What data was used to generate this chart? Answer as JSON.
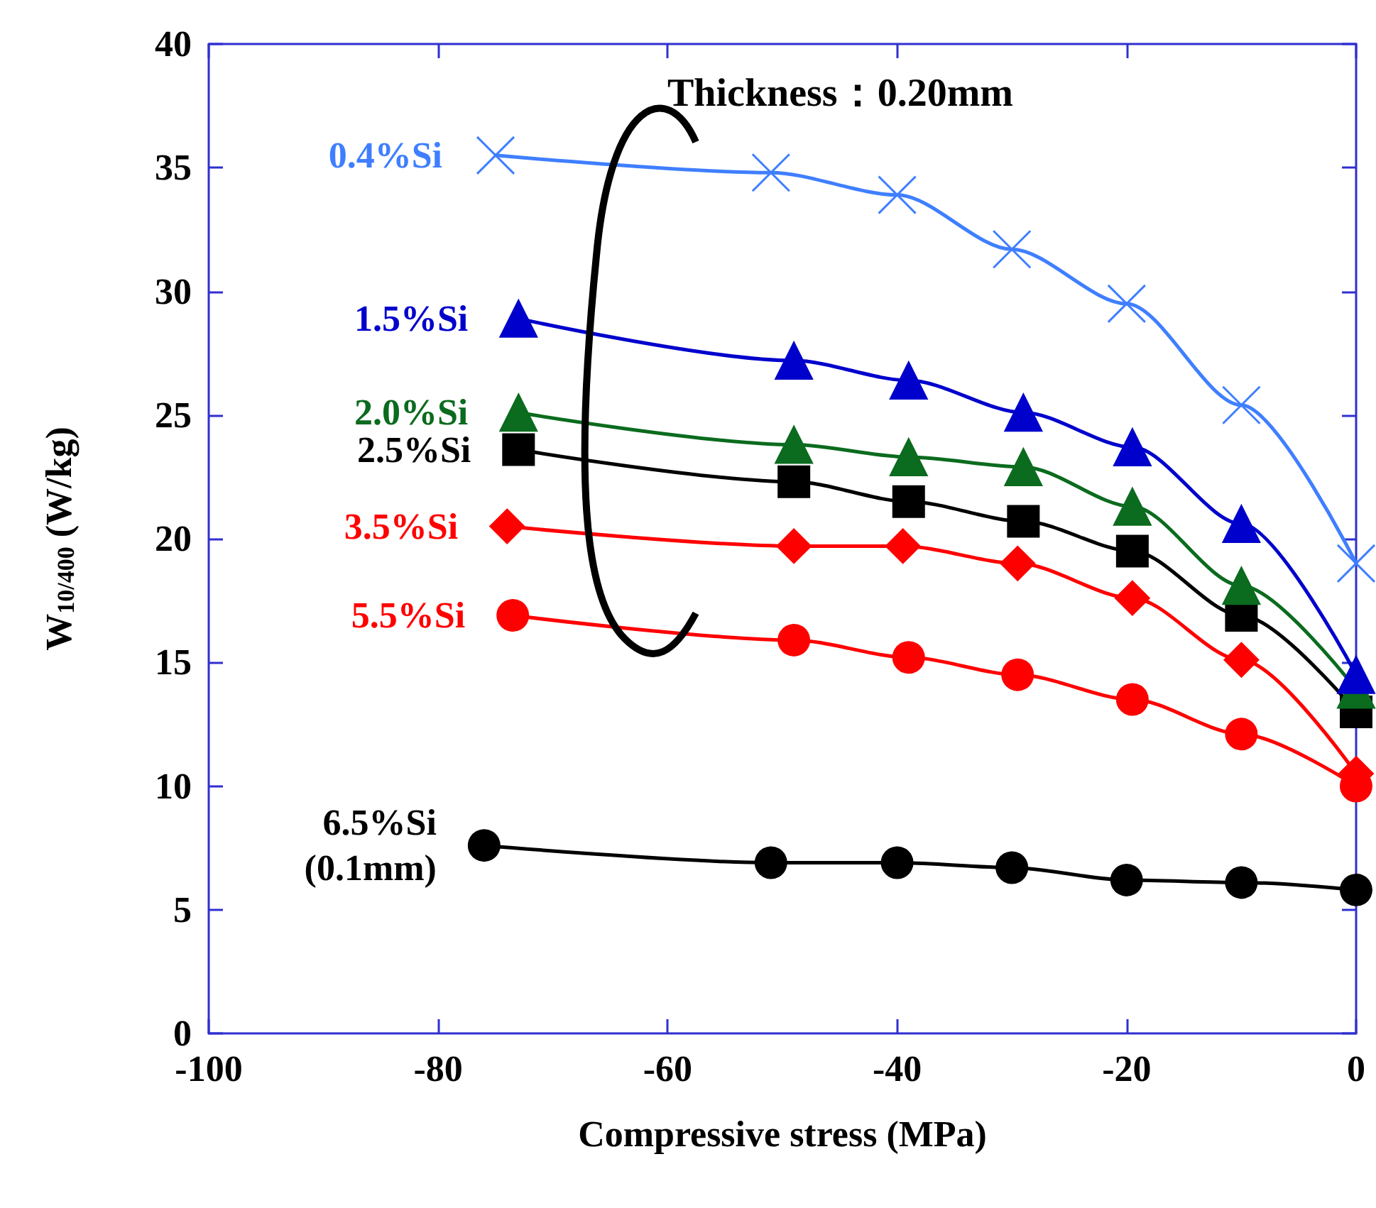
{
  "chart_data": {
    "type": "line",
    "xlabel": "Compressive stress (MPa)",
    "ylabel": "W$_{10/400}$ (W/kg)",
    "xlim": [
      -100,
      0
    ],
    "xticks": [
      -100,
      -80,
      -60,
      -40,
      -20,
      0
    ],
    "ylim": [
      0,
      40
    ],
    "yticks": [
      0,
      5,
      10,
      15,
      20,
      25,
      30,
      35,
      40
    ],
    "grid": false,
    "legend": false,
    "line_style": "solid",
    "annotations": [
      "Thickness：0.20mm"
    ],
    "series": [
      {
        "name": "0.4%Si",
        "color": "#3f7fff",
        "marker": "cross",
        "x": [
          -75,
          -51,
          -40,
          -30,
          -20,
          -10,
          0
        ],
        "values": [
          35.5,
          34.8,
          33.9,
          31.7,
          29.5,
          25.4,
          19.0
        ]
      },
      {
        "name": "1.5%Si",
        "color": "#0000cc",
        "marker": "triangle",
        "x": [
          -73,
          -49,
          -39,
          -29,
          -19.5,
          -10,
          0
        ],
        "values": [
          28.9,
          27.2,
          26.4,
          25.1,
          23.7,
          20.6,
          14.5
        ]
      },
      {
        "name": "2.0%Si",
        "color": "#0b6b1e",
        "marker": "triangle",
        "x": [
          -73,
          -49,
          -39,
          -29,
          -19.5,
          -10,
          0
        ],
        "values": [
          25.1,
          23.8,
          23.3,
          22.9,
          21.3,
          18.1,
          13.9
        ]
      },
      {
        "name": "2.5%Si",
        "color": "#000000",
        "marker": "square",
        "x": [
          -73,
          -49,
          -39,
          -29,
          -19.5,
          -10,
          0
        ],
        "values": [
          23.6,
          22.3,
          21.5,
          20.7,
          19.5,
          16.9,
          13.0
        ]
      },
      {
        "name": "3.5%Si",
        "color": "#ff0000",
        "marker": "diamond",
        "x": [
          -74,
          -49,
          -39.5,
          -29.5,
          -19.5,
          -10,
          0
        ],
        "values": [
          20.5,
          19.7,
          19.7,
          19.0,
          17.6,
          15.1,
          10.5
        ]
      },
      {
        "name": "5.5%Si",
        "color": "#ff0000",
        "marker": "circle",
        "x": [
          -73.5,
          -49,
          -39,
          -29.5,
          -19.5,
          -10,
          0
        ],
        "values": [
          16.9,
          15.9,
          15.2,
          14.5,
          13.5,
          12.1,
          10.0
        ]
      },
      {
        "name": "6.5%Si\n(0.1mm)",
        "color": "#000000",
        "marker": "circle",
        "x": [
          -76,
          -51,
          -40,
          -30,
          -20,
          -10,
          0
        ],
        "values": [
          7.6,
          6.9,
          6.9,
          6.7,
          6.2,
          6.1,
          5.8
        ]
      }
    ]
  }
}
